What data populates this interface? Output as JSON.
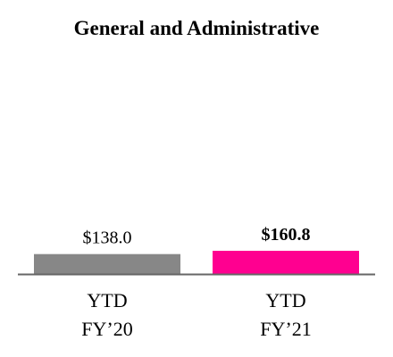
{
  "chart_data": {
    "type": "bar",
    "title": "General and Administrative",
    "categories": [
      [
        "YTD",
        "FY’20"
      ],
      [
        "YTD",
        "FY’21"
      ]
    ],
    "values": [
      138.0,
      160.8
    ],
    "value_labels": [
      "$138.0",
      "$160.8"
    ],
    "value_label_bold": [
      false,
      true
    ],
    "colors": [
      "#878787",
      "#ff0090"
    ],
    "axis_color": "#666666",
    "xlabel": "",
    "ylabel": "",
    "grid": false,
    "legend": "none"
  }
}
